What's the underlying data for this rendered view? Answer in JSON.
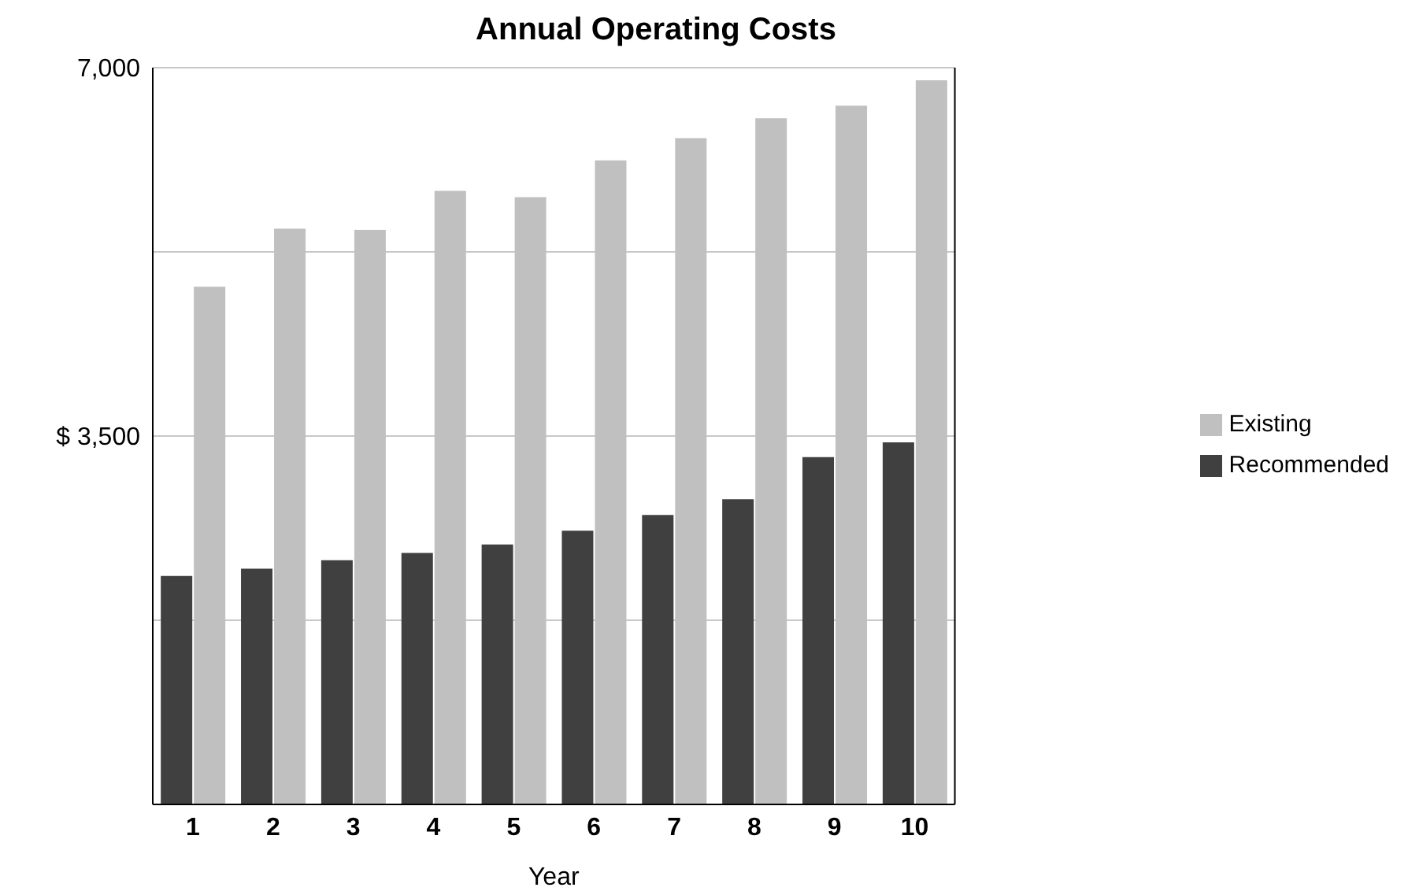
{
  "chart_data": {
    "type": "bar",
    "title": "Annual Operating Costs",
    "xlabel": "Year",
    "categories": [
      "1",
      "2",
      "3",
      "4",
      "5",
      "6",
      "7",
      "8",
      "9",
      "10"
    ],
    "series": [
      {
        "name": "Recommended",
        "color": "#404040",
        "values": [
          2170,
          2240,
          2320,
          2390,
          2470,
          2600,
          2750,
          2900,
          3300,
          3440
        ]
      },
      {
        "name": "Existing",
        "color": "#c0c0c0",
        "values": [
          4920,
          5470,
          5460,
          5830,
          5770,
          6120,
          6330,
          6520,
          6640,
          6880
        ]
      }
    ],
    "ylim": [
      0,
      7000
    ],
    "yticks": [
      {
        "value": 0,
        "label": null
      },
      {
        "value": 1750,
        "label": null
      },
      {
        "value": 3500,
        "label": "$ 3,500"
      },
      {
        "value": 5250,
        "label": null
      },
      {
        "value": 7000,
        "label": "7,000"
      }
    ],
    "grid": "y",
    "legend": "right"
  }
}
